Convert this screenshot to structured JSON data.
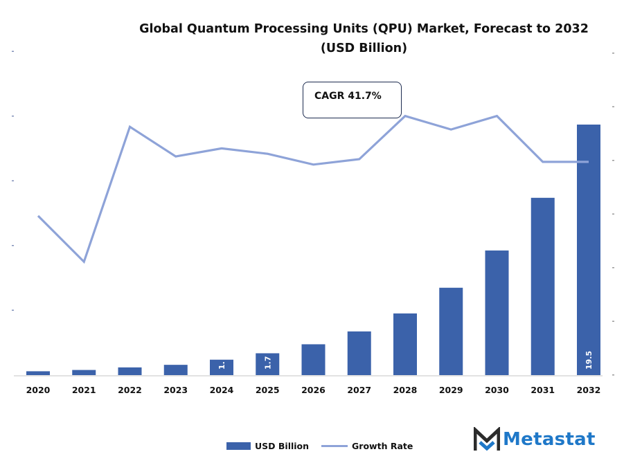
{
  "title": {
    "line1": "Global Quantum Processing Units (QPU) Market, Forecast to 2032",
    "line2": "(USD Billion)"
  },
  "annotation": {
    "cagr_label": "CAGR 41.7%"
  },
  "legend": {
    "bar_label": "USD Billion",
    "line_label": "Growth Rate"
  },
  "logo": {
    "text": "Metastat",
    "icon": "metastat-m-logo-icon"
  },
  "colors": {
    "bar": "#3b62aa",
    "line": "#8ea3d8",
    "logo_blue": "#1f78c8",
    "logo_dark": "#2b2b2b"
  },
  "chart_data": {
    "type": "bar",
    "title": "Global Quantum Processing Units (QPU) Market, Forecast to 2032 (USD Billion)",
    "xlabel": "",
    "ylabel": "",
    "categories": [
      "2020",
      "2021",
      "2022",
      "2023",
      "2024",
      "2025",
      "2026",
      "2027",
      "2028",
      "2029",
      "2030",
      "2031",
      "2032"
    ],
    "series": [
      {
        "name": "USD Billion",
        "type": "bar",
        "axis": "left",
        "values": [
          0.3,
          0.4,
          0.6,
          0.8,
          1.2,
          1.7,
          2.4,
          3.4,
          4.8,
          6.8,
          9.7,
          13.8,
          19.5
        ],
        "data_labels": {
          "4": "1.",
          "5": "1.7",
          "12": "19.5"
        }
      },
      {
        "name": "Growth Rate",
        "type": "line",
        "axis": "right",
        "values": [
          0.59,
          0.42,
          0.92,
          0.81,
          0.84,
          0.82,
          0.78,
          0.8,
          0.96,
          0.91,
          0.96,
          0.79,
          0.79
        ]
      }
    ],
    "ylim_left": [
      0,
      20
    ],
    "ylim_right": [
      0,
      1.2
    ],
    "left_axis_ticks": 6,
    "right_axis_ticks": 7,
    "grid": false,
    "legend_position": "bottom",
    "annotations": [
      "CAGR 41.7%"
    ]
  }
}
